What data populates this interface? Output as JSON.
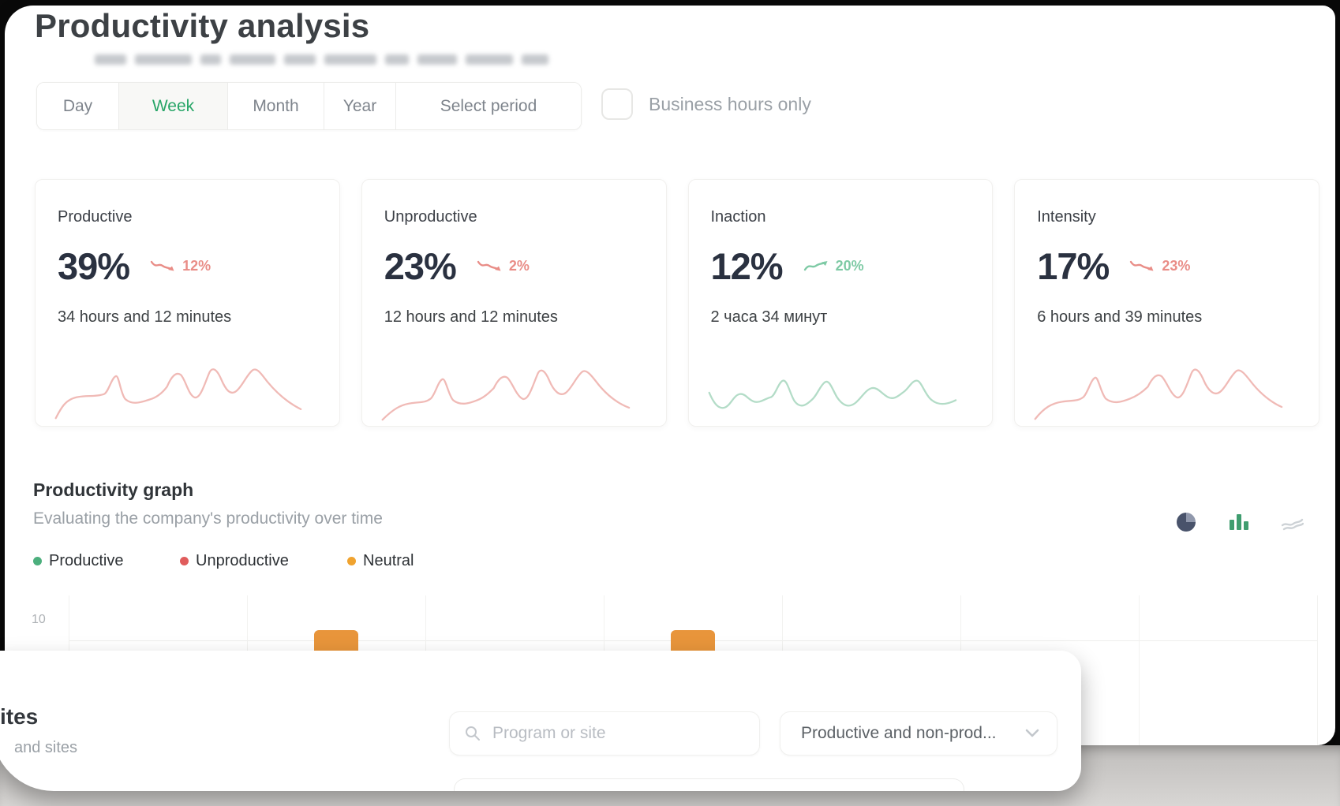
{
  "page": {
    "title": "Productivity analysis"
  },
  "period_tabs": {
    "items": [
      {
        "label": "Day",
        "active": false
      },
      {
        "label": "Week",
        "active": true
      },
      {
        "label": "Month",
        "active": false
      },
      {
        "label": "Year",
        "active": false
      },
      {
        "label": "Select period",
        "active": false
      }
    ]
  },
  "business_hours": {
    "label": "Business hours only",
    "checked": false
  },
  "stat_cards": [
    {
      "title": "Productive",
      "value": "39%",
      "delta": "12%",
      "delta_direction": "down",
      "delta_color": "#e4716a",
      "duration": "34 hours and 12 minutes",
      "spark_color": "#efb3af"
    },
    {
      "title": "Unproductive",
      "value": "23%",
      "delta": "2%",
      "delta_direction": "down",
      "delta_color": "#e4716a",
      "duration": "12 hours and 12 minutes",
      "spark_color": "#efb3af"
    },
    {
      "title": "Inaction",
      "value": "12%",
      "delta": "20%",
      "delta_direction": "up",
      "delta_color": "#5fbd8f",
      "duration": "2 часа 34 минут",
      "spark_color": "#abd9c2"
    },
    {
      "title": "Intensity",
      "value": "17%",
      "delta": "23%",
      "delta_direction": "down",
      "delta_color": "#e4716a",
      "duration": "6 hours and 39 minutes",
      "spark_color": "#efb3af"
    }
  ],
  "graph_section": {
    "title": "Productivity graph",
    "subtitle": "Evaluating the company's productivity over time",
    "legend": [
      {
        "label": "Productive",
        "color": "#4caf7d"
      },
      {
        "label": "Unproductive",
        "color": "#e05c5c"
      },
      {
        "label": "Neutral",
        "color": "#f0a32f"
      }
    ],
    "view_modes": [
      "pie-chart",
      "bar-chart",
      "stream-chart"
    ],
    "active_view": "bar-chart"
  },
  "chart_data": {
    "type": "bar",
    "title": "Productivity graph",
    "categories": [
      "",
      "",
      "",
      "",
      "",
      "",
      ""
    ],
    "series": [
      {
        "name": "Neutral",
        "color": "#e8953b",
        "values": [
          null,
          10.5,
          null,
          10.5,
          null,
          null,
          null
        ]
      }
    ],
    "y_ticks": [
      "10"
    ],
    "grid": "vertical",
    "legend_position": "top-left"
  },
  "bottom_panel": {
    "heading": "ites",
    "subheading": "and sites",
    "search": {
      "placeholder": "Program or site"
    },
    "category_filter": {
      "value": "Productive and non-prod..."
    }
  },
  "colors": {
    "accent_green": "#27a567",
    "negative_red": "#e4716a",
    "positive_green": "#5fbd8f",
    "neutral_orange": "#e8953b"
  }
}
